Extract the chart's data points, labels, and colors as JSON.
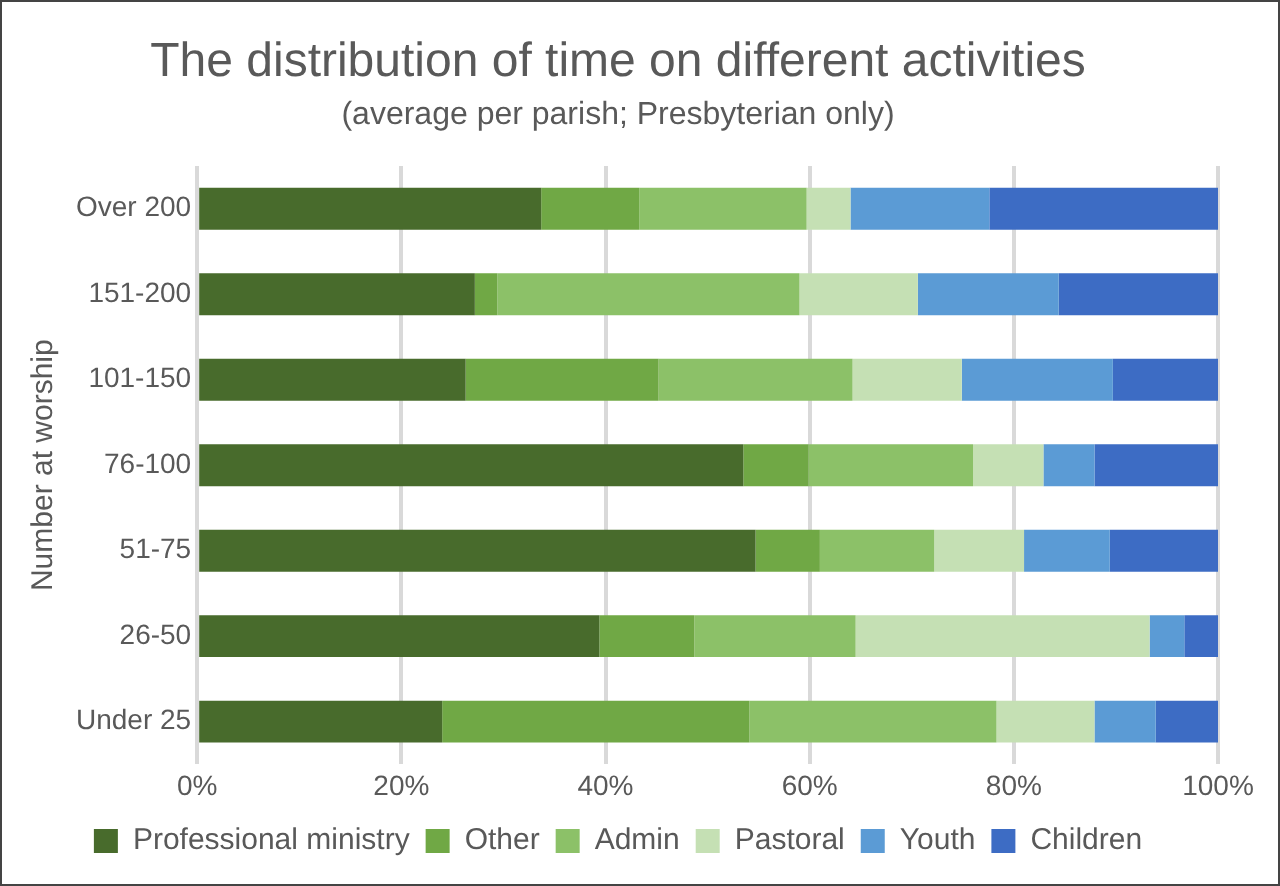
{
  "chart_data": {
    "type": "bar",
    "orientation": "horizontal",
    "stacked": true,
    "title": "The distribution of time on different activities",
    "subtitle": "(average per parish; Presbyterian only)",
    "ylabel": "Number at worship",
    "categories": [
      "Over 200",
      "151-200",
      "101-150",
      "76-100",
      "51-75",
      "26-50",
      "Under 25"
    ],
    "series": [
      {
        "name": "Professional ministry",
        "color": "#486b2c",
        "values": [
          33.7,
          27.2,
          26.3,
          53.5,
          54.7,
          39.4,
          24.0
        ]
      },
      {
        "name": "Other",
        "color": "#70a845",
        "values": [
          9.6,
          2.2,
          18.9,
          6.4,
          6.3,
          9.3,
          30.1
        ]
      },
      {
        "name": "Admin",
        "color": "#8cc168",
        "values": [
          16.4,
          29.6,
          19.0,
          16.1,
          11.2,
          15.8,
          24.2
        ]
      },
      {
        "name": "Pastoral",
        "color": "#c5e0b4",
        "values": [
          4.3,
          11.6,
          10.7,
          6.9,
          8.8,
          28.8,
          9.6
        ]
      },
      {
        "name": "Youth",
        "color": "#5b9bd5",
        "values": [
          13.6,
          13.8,
          14.8,
          5.0,
          8.4,
          3.4,
          6.0
        ]
      },
      {
        "name": "Children",
        "color": "#3d6cc4",
        "values": [
          22.4,
          15.6,
          10.3,
          12.1,
          10.6,
          3.3,
          6.1
        ]
      }
    ],
    "xlim": [
      0,
      100
    ],
    "xticks": [
      {
        "value": 0,
        "label": "0%"
      },
      {
        "value": 20,
        "label": "20%"
      },
      {
        "value": 40,
        "label": "40%"
      },
      {
        "value": 60,
        "label": "60%"
      },
      {
        "value": 80,
        "label": "80%"
      },
      {
        "value": 100,
        "label": "100%"
      }
    ],
    "grid": "x",
    "legend": "bottom"
  }
}
